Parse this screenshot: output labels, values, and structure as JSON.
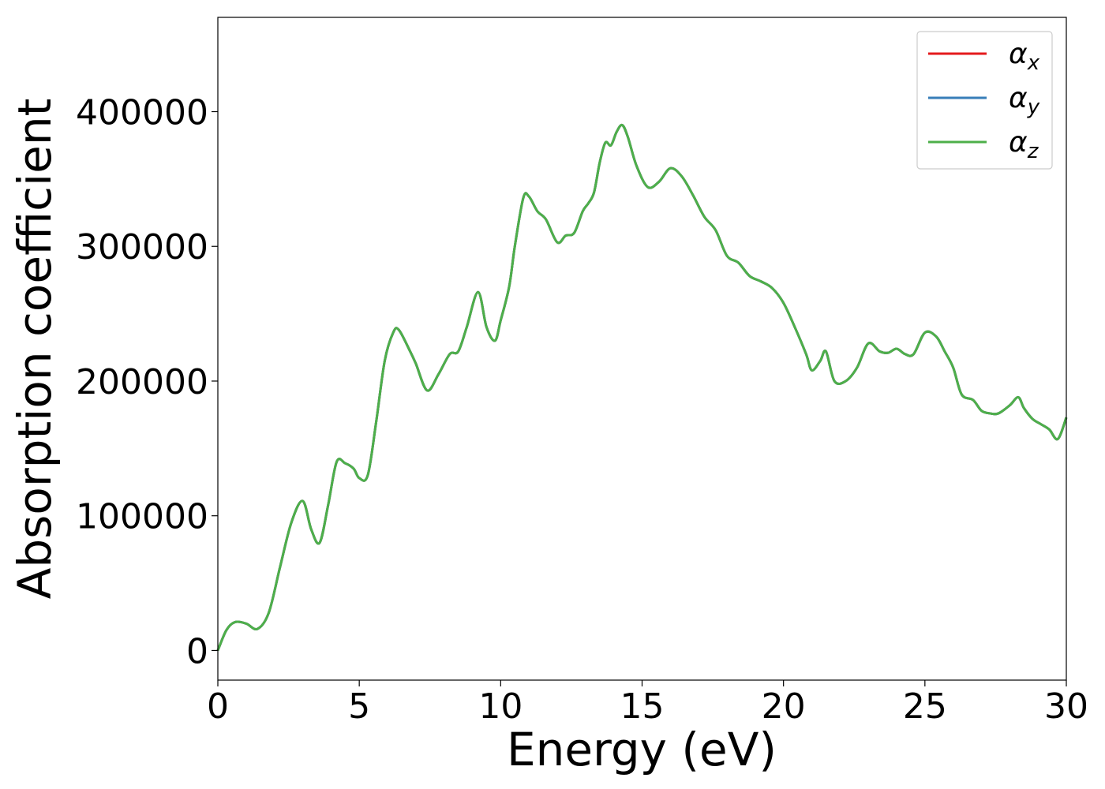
{
  "chart_data": {
    "type": "line",
    "title": "",
    "xlabel": "Energy (eV)",
    "ylabel": "Absorption coefficient",
    "xlim": [
      0,
      30
    ],
    "ylim": [
      -22000,
      470000
    ],
    "xticks": [
      0,
      5,
      10,
      15,
      20,
      25,
      30
    ],
    "yticks": [
      0,
      100000,
      200000,
      300000,
      400000
    ],
    "grid": false,
    "legend_position": "top-right",
    "series": [
      {
        "name": "α",
        "subscript": "x",
        "color": "#e41a1c",
        "x": [
          0,
          0.3,
          0.6,
          1.0,
          1.4,
          1.8,
          2.2,
          2.6,
          3.0,
          3.3,
          3.6,
          3.9,
          4.2,
          4.5,
          4.8,
          5.0,
          5.3,
          5.6,
          5.9,
          6.2,
          6.4,
          6.8,
          7.0,
          7.4,
          7.8,
          8.2,
          8.5,
          8.8,
          9.2,
          9.5,
          9.8,
          10.0,
          10.3,
          10.5,
          10.8,
          11.0,
          11.3,
          11.6,
          12.0,
          12.3,
          12.6,
          12.9,
          13.1,
          13.3,
          13.5,
          13.7,
          13.9,
          14.1,
          14.3,
          14.5,
          14.8,
          15.2,
          15.6,
          16.0,
          16.4,
          16.8,
          17.2,
          17.6,
          18.0,
          18.4,
          18.8,
          19.2,
          19.6,
          20.0,
          20.4,
          20.8,
          21.0,
          21.3,
          21.5,
          21.8,
          22.2,
          22.6,
          23.0,
          23.4,
          23.7,
          24.0,
          24.3,
          24.6,
          25.0,
          25.4,
          25.7,
          26.0,
          26.3,
          26.7,
          27.0,
          27.3,
          27.6,
          28.0,
          28.3,
          28.5,
          28.8,
          29.1,
          29.4,
          29.7,
          30.0
        ],
        "values": [
          0,
          15000,
          21000,
          20000,
          16000,
          28000,
          62000,
          95000,
          111000,
          90000,
          80000,
          108000,
          140000,
          139000,
          135000,
          128000,
          130000,
          170000,
          215000,
          236000,
          238000,
          222000,
          213000,
          193000,
          205000,
          220000,
          222000,
          240000,
          266000,
          240000,
          230000,
          245000,
          270000,
          300000,
          336000,
          337000,
          326000,
          320000,
          303000,
          308000,
          310000,
          326000,
          332000,
          340000,
          362000,
          377000,
          375000,
          385000,
          390000,
          381000,
          360000,
          344000,
          348000,
          358000,
          352000,
          338000,
          322000,
          312000,
          293000,
          288000,
          278000,
          274000,
          269000,
          258000,
          240000,
          220000,
          208000,
          215000,
          222000,
          200000,
          200000,
          210000,
          228000,
          222000,
          221000,
          224000,
          220000,
          220000,
          236000,
          233000,
          222000,
          210000,
          190000,
          186000,
          178000,
          176000,
          176000,
          182000,
          188000,
          180000,
          172000,
          168000,
          164000,
          157000,
          173000
        ]
      },
      {
        "name": "α",
        "subscript": "y",
        "color": "#377eb8",
        "x": [
          0,
          0.3,
          0.6,
          1.0,
          1.4,
          1.8,
          2.2,
          2.6,
          3.0,
          3.3,
          3.6,
          3.9,
          4.2,
          4.5,
          4.8,
          5.0,
          5.3,
          5.6,
          5.9,
          6.2,
          6.4,
          6.8,
          7.0,
          7.4,
          7.8,
          8.2,
          8.5,
          8.8,
          9.2,
          9.5,
          9.8,
          10.0,
          10.3,
          10.5,
          10.8,
          11.0,
          11.3,
          11.6,
          12.0,
          12.3,
          12.6,
          12.9,
          13.1,
          13.3,
          13.5,
          13.7,
          13.9,
          14.1,
          14.3,
          14.5,
          14.8,
          15.2,
          15.6,
          16.0,
          16.4,
          16.8,
          17.2,
          17.6,
          18.0,
          18.4,
          18.8,
          19.2,
          19.6,
          20.0,
          20.4,
          20.8,
          21.0,
          21.3,
          21.5,
          21.8,
          22.2,
          22.6,
          23.0,
          23.4,
          23.7,
          24.0,
          24.3,
          24.6,
          25.0,
          25.4,
          25.7,
          26.0,
          26.3,
          26.7,
          27.0,
          27.3,
          27.6,
          28.0,
          28.3,
          28.5,
          28.8,
          29.1,
          29.4,
          29.7,
          30.0
        ],
        "values": [
          0,
          15000,
          21000,
          20000,
          16000,
          28000,
          62000,
          95000,
          111000,
          90000,
          80000,
          108000,
          140000,
          139000,
          135000,
          128000,
          130000,
          170000,
          215000,
          236000,
          238000,
          222000,
          213000,
          193000,
          205000,
          220000,
          222000,
          240000,
          266000,
          240000,
          230000,
          245000,
          270000,
          300000,
          336000,
          337000,
          326000,
          320000,
          303000,
          308000,
          310000,
          326000,
          332000,
          340000,
          362000,
          377000,
          375000,
          385000,
          390000,
          381000,
          360000,
          344000,
          348000,
          358000,
          352000,
          338000,
          322000,
          312000,
          293000,
          288000,
          278000,
          274000,
          269000,
          258000,
          240000,
          220000,
          208000,
          215000,
          222000,
          200000,
          200000,
          210000,
          228000,
          222000,
          221000,
          224000,
          220000,
          220000,
          236000,
          233000,
          222000,
          210000,
          190000,
          186000,
          178000,
          176000,
          176000,
          182000,
          188000,
          180000,
          172000,
          168000,
          164000,
          157000,
          173000
        ]
      },
      {
        "name": "α",
        "subscript": "z",
        "color": "#4daf4a",
        "x": [
          0,
          0.3,
          0.6,
          1.0,
          1.4,
          1.8,
          2.2,
          2.6,
          3.0,
          3.3,
          3.6,
          3.9,
          4.2,
          4.5,
          4.8,
          5.0,
          5.3,
          5.6,
          5.9,
          6.2,
          6.4,
          6.8,
          7.0,
          7.4,
          7.8,
          8.2,
          8.5,
          8.8,
          9.2,
          9.5,
          9.8,
          10.0,
          10.3,
          10.5,
          10.8,
          11.0,
          11.3,
          11.6,
          12.0,
          12.3,
          12.6,
          12.9,
          13.1,
          13.3,
          13.5,
          13.7,
          13.9,
          14.1,
          14.3,
          14.5,
          14.8,
          15.2,
          15.6,
          16.0,
          16.4,
          16.8,
          17.2,
          17.6,
          18.0,
          18.4,
          18.8,
          19.2,
          19.6,
          20.0,
          20.4,
          20.8,
          21.0,
          21.3,
          21.5,
          21.8,
          22.2,
          22.6,
          23.0,
          23.4,
          23.7,
          24.0,
          24.3,
          24.6,
          25.0,
          25.4,
          25.7,
          26.0,
          26.3,
          26.7,
          27.0,
          27.3,
          27.6,
          28.0,
          28.3,
          28.5,
          28.8,
          29.1,
          29.4,
          29.7,
          30.0
        ],
        "values": [
          0,
          15000,
          21000,
          20000,
          16000,
          28000,
          62000,
          95000,
          111000,
          90000,
          80000,
          108000,
          140000,
          139000,
          135000,
          128000,
          130000,
          170000,
          215000,
          236000,
          238000,
          222000,
          213000,
          193000,
          205000,
          220000,
          222000,
          240000,
          266000,
          240000,
          230000,
          245000,
          270000,
          300000,
          336000,
          337000,
          326000,
          320000,
          303000,
          308000,
          310000,
          326000,
          332000,
          340000,
          362000,
          377000,
          375000,
          385000,
          390000,
          381000,
          360000,
          344000,
          348000,
          358000,
          352000,
          338000,
          322000,
          312000,
          293000,
          288000,
          278000,
          274000,
          269000,
          258000,
          240000,
          220000,
          208000,
          215000,
          222000,
          200000,
          200000,
          210000,
          228000,
          222000,
          221000,
          224000,
          220000,
          220000,
          236000,
          233000,
          222000,
          210000,
          190000,
          186000,
          178000,
          176000,
          176000,
          182000,
          188000,
          180000,
          172000,
          168000,
          164000,
          157000,
          173000
        ]
      }
    ]
  }
}
